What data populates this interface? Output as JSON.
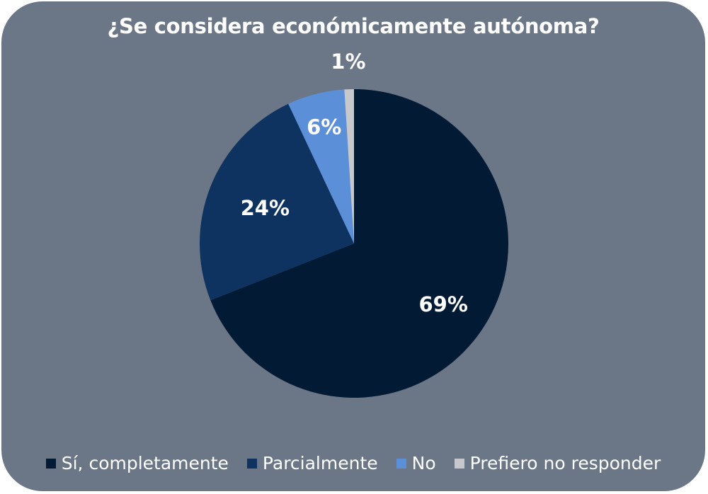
{
  "chart_data": {
    "type": "pie",
    "title": "¿Se considera económicamente autónoma?",
    "categories": [
      "Sí, completamente",
      "Parcialmente",
      "No",
      "Prefiero no responder"
    ],
    "values": [
      69,
      24,
      6,
      1
    ],
    "labels": [
      "69%",
      "24%",
      "6%",
      "1%"
    ],
    "colors": [
      "#021a33",
      "#0f3360",
      "#5b8fd8",
      "#c6c8cb"
    ],
    "legend_position": "bottom",
    "start_angle_deg": 0,
    "direction": "clockwise"
  }
}
